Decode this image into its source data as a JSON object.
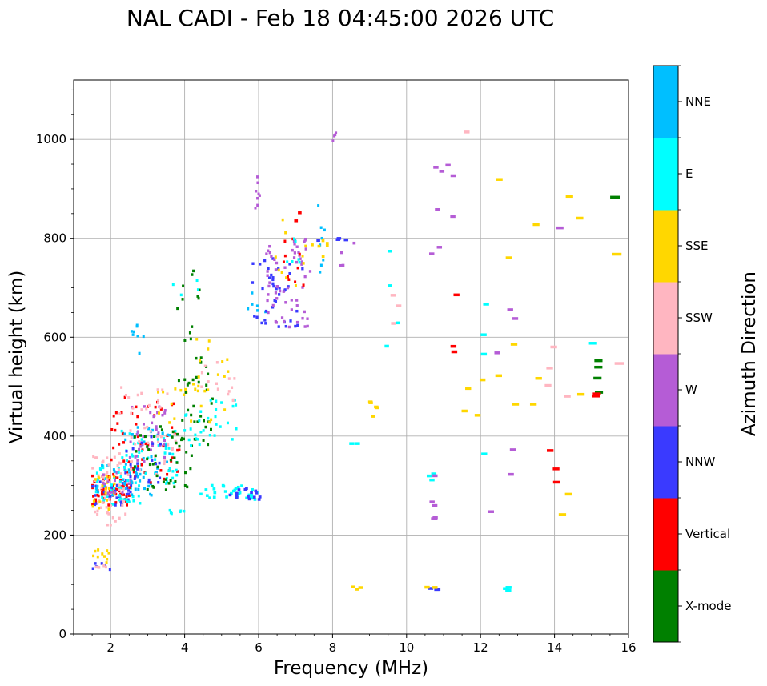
{
  "chart_data": {
    "type": "scatter",
    "title": "NAL CADI - Feb 18 04:45:00 2026 UTC",
    "xlabel": "Frequency (MHz)",
    "ylabel": "Virtual height (km)",
    "xlim": [
      1,
      16
    ],
    "ylim": [
      0,
      1120
    ],
    "xticks": [
      2,
      4,
      6,
      8,
      10,
      12,
      14,
      16
    ],
    "yticks": [
      0,
      200,
      400,
      600,
      800,
      1000
    ],
    "grid": true,
    "colorbar": {
      "label": "Azimuth Direction",
      "categories": [
        {
          "name": "X-mode",
          "color": "#008000"
        },
        {
          "name": "Vertical",
          "color": "#ff0000"
        },
        {
          "name": "NNW",
          "color": "#3a3aff"
        },
        {
          "name": "W",
          "color": "#b55cd6"
        },
        {
          "name": "SSW",
          "color": "#ffb6c1"
        },
        {
          "name": "SSE",
          "color": "#ffd700"
        },
        {
          "name": "E",
          "color": "#00ffff"
        },
        {
          "name": "NNE",
          "color": "#00bfff"
        }
      ]
    },
    "clusters": [
      {
        "dir": "Vertical",
        "f": [
          1.5,
          2.6
        ],
        "h": [
          260,
          320
        ],
        "n": 60,
        "w": 0.06
      },
      {
        "dir": "NNW",
        "f": [
          1.5,
          2.6
        ],
        "h": [
          260,
          310
        ],
        "n": 30,
        "w": 0.06
      },
      {
        "dir": "E",
        "f": [
          1.5,
          2.8
        ],
        "h": [
          260,
          340
        ],
        "n": 40,
        "w": 0.06
      },
      {
        "dir": "NNE",
        "f": [
          1.6,
          3.2
        ],
        "h": [
          270,
          350
        ],
        "n": 30,
        "w": 0.06
      },
      {
        "dir": "SSW",
        "f": [
          1.5,
          2.4
        ],
        "h": [
          220,
          360
        ],
        "n": 45,
        "w": 0.06
      },
      {
        "dir": "SSE",
        "f": [
          1.5,
          2.2
        ],
        "h": [
          240,
          330
        ],
        "n": 20,
        "w": 0.06
      },
      {
        "dir": "W",
        "f": [
          1.8,
          2.6
        ],
        "h": [
          280,
          340
        ],
        "n": 15,
        "w": 0.06
      },
      {
        "dir": "SSE",
        "f": [
          1.5,
          2.0
        ],
        "h": [
          140,
          170
        ],
        "n": 10,
        "w": 0.06
      },
      {
        "dir": "NNW",
        "f": [
          1.5,
          2.0
        ],
        "h": [
          128,
          145
        ],
        "n": 6,
        "w": 0.06
      },
      {
        "dir": "SSW",
        "f": [
          1.5,
          1.9
        ],
        "h": [
          125,
          140
        ],
        "n": 5,
        "w": 0.06
      },
      {
        "dir": "Vertical",
        "f": [
          2.0,
          3.9
        ],
        "h": [
          290,
          480
        ],
        "n": 55,
        "w": 0.06
      },
      {
        "dir": "E",
        "f": [
          2.2,
          3.8
        ],
        "h": [
          300,
          420
        ],
        "n": 50,
        "w": 0.06
      },
      {
        "dir": "NNE",
        "f": [
          2.3,
          3.6
        ],
        "h": [
          300,
          420
        ],
        "n": 30,
        "w": 0.06
      },
      {
        "dir": "W",
        "f": [
          2.3,
          3.6
        ],
        "h": [
          340,
          460
        ],
        "n": 35,
        "w": 0.06
      },
      {
        "dir": "SSW",
        "f": [
          2.2,
          3.8
        ],
        "h": [
          320,
          500
        ],
        "n": 45,
        "w": 0.06
      },
      {
        "dir": "X-mode",
        "f": [
          2.6,
          4.2
        ],
        "h": [
          290,
          420
        ],
        "n": 45,
        "w": 0.06
      },
      {
        "dir": "NNW",
        "f": [
          2.4,
          3.4
        ],
        "h": [
          300,
          400
        ],
        "n": 20,
        "w": 0.06
      },
      {
        "dir": "SSE",
        "f": [
          3.2,
          4.2
        ],
        "h": [
          420,
          500
        ],
        "n": 12,
        "w": 0.06
      },
      {
        "dir": "X-mode",
        "f": [
          3.8,
          4.8
        ],
        "h": [
          380,
          560
        ],
        "n": 35,
        "w": 0.06
      },
      {
        "dir": "E",
        "f": [
          4.0,
          5.4
        ],
        "h": [
          380,
          480
        ],
        "n": 30,
        "w": 0.06
      },
      {
        "dir": "SSE",
        "f": [
          4.2,
          5.2
        ],
        "h": [
          420,
          600
        ],
        "n": 20,
        "w": 0.06
      },
      {
        "dir": "SSW",
        "f": [
          4.4,
          5.4
        ],
        "h": [
          460,
          560
        ],
        "n": 15,
        "w": 0.06
      },
      {
        "dir": "X-mode",
        "f": [
          3.8,
          4.6
        ],
        "h": [
          580,
          740
        ],
        "n": 12,
        "w": 0.06
      },
      {
        "dir": "E",
        "f": [
          3.6,
          4.4
        ],
        "h": [
          680,
          720
        ],
        "n": 4,
        "w": 0.06
      },
      {
        "dir": "E",
        "f": [
          4.4,
          6.0
        ],
        "h": [
          270,
          300
        ],
        "n": 30,
        "w": 0.08
      },
      {
        "dir": "NNW",
        "f": [
          5.2,
          6.2
        ],
        "h": [
          270,
          300
        ],
        "n": 15,
        "w": 0.08
      },
      {
        "dir": "E",
        "f": [
          3.6,
          4.0
        ],
        "h": [
          240,
          250
        ],
        "n": 6,
        "w": 0.06
      },
      {
        "dir": "NNE",
        "f": [
          2.4,
          2.9
        ],
        "h": [
          560,
          630
        ],
        "n": 8,
        "w": 0.06
      },
      {
        "dir": "NNE",
        "f": [
          5.7,
          6.2
        ],
        "h": [
          620,
          690
        ],
        "n": 6,
        "w": 0.06
      },
      {
        "dir": "NNW",
        "f": [
          5.8,
          7.2
        ],
        "h": [
          620,
          760
        ],
        "n": 40,
        "w": 0.07
      },
      {
        "dir": "W",
        "f": [
          6.2,
          7.4
        ],
        "h": [
          620,
          800
        ],
        "n": 60,
        "w": 0.07
      },
      {
        "dir": "Vertical",
        "f": [
          6.6,
          7.3
        ],
        "h": [
          700,
          800
        ],
        "n": 10,
        "w": 0.06
      },
      {
        "dir": "SSE",
        "f": [
          6.4,
          7.4
        ],
        "h": [
          700,
          840
        ],
        "n": 10,
        "w": 0.06
      },
      {
        "dir": "E",
        "f": [
          6.6,
          7.2
        ],
        "h": [
          740,
          800
        ],
        "n": 6,
        "w": 0.06
      },
      {
        "dir": "W",
        "f": [
          5.9,
          6.1
        ],
        "h": [
          850,
          940
        ],
        "n": 8,
        "w": 0.06
      },
      {
        "dir": "NNE",
        "f": [
          7.6,
          7.8
        ],
        "h": [
          720,
          870
        ],
        "n": 8,
        "w": 0.06
      },
      {
        "dir": "SSE",
        "f": [
          7.4,
          8.0
        ],
        "h": [
          760,
          800
        ],
        "n": 6,
        "w": 0.08
      },
      {
        "dir": "W",
        "f": [
          8.0,
          8.1
        ],
        "h": [
          990,
          1015
        ],
        "n": 4,
        "w": 0.06
      },
      {
        "dir": "NNW",
        "f": [
          8.0,
          8.6
        ],
        "h": [
          795,
          800
        ],
        "n": 3,
        "w": 0.12
      },
      {
        "dir": "W",
        "f": [
          8.1,
          8.9
        ],
        "h": [
          740,
          830
        ],
        "n": 4,
        "w": 0.08
      },
      {
        "dir": "SSE",
        "f": [
          9.0,
          9.3
        ],
        "h": [
          438,
          480
        ],
        "n": 5,
        "w": 0.12
      },
      {
        "dir": "SSE",
        "f": [
          8.5,
          9.0
        ],
        "h": [
          88,
          95
        ],
        "n": 3,
        "w": 0.12
      },
      {
        "dir": "E",
        "f": [
          8.4,
          8.7
        ],
        "h": [
          380,
          385
        ],
        "n": 2,
        "w": 0.14
      },
      {
        "dir": "E",
        "f": [
          9.0,
          9.8
        ],
        "h": [
          540,
          800
        ],
        "n": 4,
        "w": 0.12
      },
      {
        "dir": "E",
        "f": [
          10.6,
          10.8
        ],
        "h": [
          310,
          330
        ],
        "n": 3,
        "w": 0.14
      },
      {
        "dir": "W",
        "f": [
          10.6,
          10.8
        ],
        "h": [
          140,
          390
        ],
        "n": 6,
        "w": 0.14
      },
      {
        "dir": "NNW",
        "f": [
          10.6,
          11.0
        ],
        "h": [
          88,
          95
        ],
        "n": 3,
        "w": 0.14
      },
      {
        "dir": "SSE",
        "f": [
          10.4,
          10.8
        ],
        "h": [
          90,
          98
        ],
        "n": 2,
        "w": 0.14
      },
      {
        "dir": "W",
        "f": [
          10.6,
          11.4
        ],
        "h": [
          440,
          970
        ],
        "n": 8,
        "w": 0.14
      },
      {
        "dir": "Vertical",
        "f": [
          11.2,
          11.4
        ],
        "h": [
          530,
          900
        ],
        "n": 3,
        "w": 0.16
      },
      {
        "dir": "SSE",
        "f": [
          11.4,
          12.6
        ],
        "h": [
          400,
          520
        ],
        "n": 4,
        "w": 0.16
      },
      {
        "dir": "E",
        "f": [
          11.6,
          12.4
        ],
        "h": [
          340,
          850
        ],
        "n": 4,
        "w": 0.16
      },
      {
        "dir": "W",
        "f": [
          12.0,
          13.2
        ],
        "h": [
          245,
          680
        ],
        "n": 6,
        "w": 0.16
      },
      {
        "dir": "SSE",
        "f": [
          12.2,
          13.6
        ],
        "h": [
          430,
          960
        ],
        "n": 8,
        "w": 0.18
      },
      {
        "dir": "E",
        "f": [
          12.4,
          13.0
        ],
        "h": [
          88,
          95
        ],
        "n": 3,
        "w": 0.16
      },
      {
        "dir": "Vertical",
        "f": [
          13.8,
          14.2
        ],
        "h": [
          265,
          940
        ],
        "n": 3,
        "w": 0.18
      },
      {
        "dir": "SSW",
        "f": [
          13.8,
          14.6
        ],
        "h": [
          400,
          850
        ],
        "n": 4,
        "w": 0.18
      },
      {
        "dir": "SSE",
        "f": [
          14.2,
          14.8
        ],
        "h": [
          170,
          900
        ],
        "n": 5,
        "w": 0.2
      },
      {
        "dir": "X-mode",
        "f": [
          15.1,
          15.2
        ],
        "h": [
          445,
          560
        ],
        "n": 4,
        "w": 0.22
      },
      {
        "dir": "Vertical",
        "f": [
          15.1,
          15.2
        ],
        "h": [
          478,
          485
        ],
        "n": 2,
        "w": 0.22
      },
      {
        "dir": "E",
        "f": [
          15.0,
          15.2
        ],
        "h": [
          585,
          590
        ],
        "n": 1,
        "w": 0.22
      },
      {
        "dir": "X-mode",
        "f": [
          15.6,
          15.8
        ],
        "h": [
          880,
          885
        ],
        "n": 1,
        "w": 0.26
      },
      {
        "dir": "SSE",
        "f": [
          15.6,
          15.8
        ],
        "h": [
          765,
          770
        ],
        "n": 1,
        "w": 0.26
      },
      {
        "dir": "SSW",
        "f": [
          15.6,
          15.8
        ],
        "h": [
          543,
          547
        ],
        "n": 1,
        "w": 0.26
      },
      {
        "dir": "W",
        "f": [
          13.9,
          14.2
        ],
        "h": [
          820,
          825
        ],
        "n": 1,
        "w": 0.2
      },
      {
        "dir": "SSW",
        "f": [
          11.6,
          11.8
        ],
        "h": [
          1013,
          1018
        ],
        "n": 1,
        "w": 0.16
      },
      {
        "dir": "SSW",
        "f": [
          9.6,
          9.8
        ],
        "h": [
          610,
          715
        ],
        "n": 3,
        "w": 0.14
      },
      {
        "dir": "Vertical",
        "f": [
          7.0,
          7.2
        ],
        "h": [
          820,
          880
        ],
        "n": 2,
        "w": 0.1
      },
      {
        "dir": "NNW",
        "f": [
          7.6,
          7.8
        ],
        "h": [
          795,
          800
        ],
        "n": 1,
        "w": 0.1
      }
    ]
  }
}
